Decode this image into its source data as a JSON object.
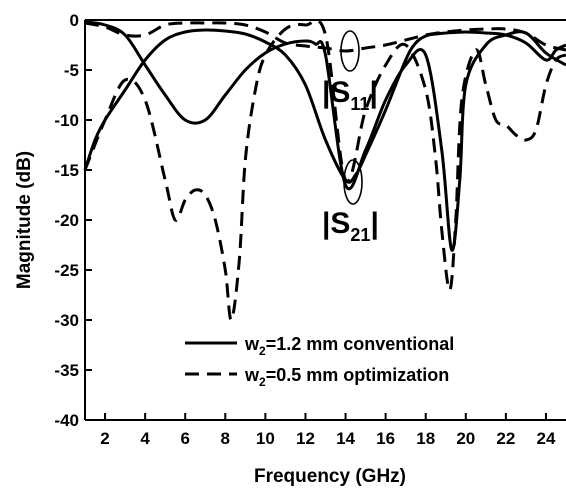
{
  "chart_data": {
    "type": "line",
    "title": "",
    "xlabel": "Frequency (GHz)",
    "ylabel": "Magnitude (dB)",
    "xlim": [
      1,
      25
    ],
    "ylim": [
      -40,
      0
    ],
    "xticks": [
      2,
      4,
      6,
      8,
      10,
      12,
      14,
      16,
      18,
      20,
      22,
      24
    ],
    "yticks": [
      0,
      -5,
      -10,
      -15,
      -20,
      -25,
      -30,
      -35,
      -40
    ],
    "grid": false,
    "legend_position": "bottom-center",
    "series": [
      {
        "name": "w2=1.2 mm conventional",
        "legend": {
          "main": "w",
          "sub": "2",
          "rest": "=1.2 mm conventional"
        },
        "style": "solid",
        "color": "#000000",
        "curves": [
          {
            "label": "S21",
            "x": [
              1,
              2,
              3,
              4,
              5,
              6,
              7,
              8,
              9,
              10,
              11,
              12,
              12.5,
              13,
              14,
              15,
              16,
              17,
              18,
              18.8,
              19.3,
              19.7,
              20,
              21,
              22,
              23,
              24,
              25
            ],
            "y": [
              -0.2,
              -0.5,
              -1.5,
              -4.5,
              -7.5,
              -10,
              -10,
              -7.5,
              -5,
              -3.3,
              -2.4,
              -2.1,
              -2.4,
              -3.5,
              -16.5,
              -13,
              -8,
              -4.5,
              -3.5,
              -13,
              -23,
              -16,
              -6.5,
              -2.5,
              -1.5,
              -1.3,
              -3.3,
              -4.5
            ]
          },
          {
            "label": "S11",
            "x": [
              1,
              1.5,
              2,
              3,
              4,
              5,
              6,
              7,
              8,
              9,
              10,
              11,
              12,
              13,
              14,
              14.5,
              15,
              16,
              17,
              17.5,
              18,
              18.5,
              19,
              20,
              21,
              22,
              23,
              24,
              24.5,
              25
            ],
            "y": [
              -15,
              -12,
              -10,
              -7,
              -4,
              -2,
              -1.2,
              -1,
              -1.1,
              -1.4,
              -2.2,
              -3.5,
              -6.5,
              -12,
              -16,
              -15.5,
              -13.5,
              -9,
              -4,
              -2.3,
              -1.6,
              -1.4,
              -1.3,
              -1.2,
              -1.3,
              -1.5,
              -2.3,
              -4,
              -3,
              -2.5
            ]
          }
        ]
      },
      {
        "name": "w2=0.5 mm optimization",
        "legend": {
          "main": "w",
          "sub": "2",
          "rest": "=0.5 mm optimization"
        },
        "style": "dashed",
        "color": "#000000",
        "curves": [
          {
            "label": "S21",
            "x": [
              1,
              2,
              3,
              4,
              5,
              5.5,
              6,
              6.5,
              7,
              7.5,
              8,
              8.3,
              8.7,
              9,
              9.5,
              10,
              11,
              12,
              13,
              14,
              15,
              16,
              17,
              18,
              18.5,
              18.8,
              19.2,
              19.5,
              19.8,
              20.5,
              21,
              21.5,
              22,
              22.5,
              23,
              23.5,
              24,
              24.5,
              25
            ],
            "y": [
              -15,
              -10,
              -6,
              -8,
              -16,
              -20,
              -18,
              -17,
              -17.5,
              -20,
              -25,
              -30,
              -24,
              -14,
              -7,
              -3.5,
              -0.9,
              -0.5,
              -1.5,
              -16,
              -9,
              -4.5,
              -2.5,
              -7,
              -14,
              -21,
              -27,
              -20,
              -8,
              -3,
              -6.5,
              -10,
              -10.5,
              -11.5,
              -12,
              -11,
              -6.5,
              -4,
              -3.5
            ]
          },
          {
            "label": "S11",
            "x": [
              1,
              2,
              3,
              4,
              5,
              6,
              7,
              8,
              9,
              10,
              11,
              12,
              13,
              14,
              15,
              16,
              17,
              18,
              19,
              20,
              21,
              22,
              23,
              24,
              25
            ],
            "y": [
              -0.3,
              -0.7,
              -1.5,
              -1.5,
              -0.5,
              -0.3,
              -0.3,
              -0.3,
              -0.5,
              -1.2,
              -2.3,
              -2.6,
              -2.8,
              -3.1,
              -2.8,
              -2.5,
              -2,
              -1.5,
              -1.2,
              -1,
              -0.9,
              -0.9,
              -1.3,
              -2.5,
              -3
            ]
          }
        ]
      }
    ],
    "annotations": [
      {
        "main": "|S",
        "sub": "11",
        "close": "|"
      },
      {
        "main": "|S",
        "sub": "21",
        "close": "|"
      }
    ]
  }
}
